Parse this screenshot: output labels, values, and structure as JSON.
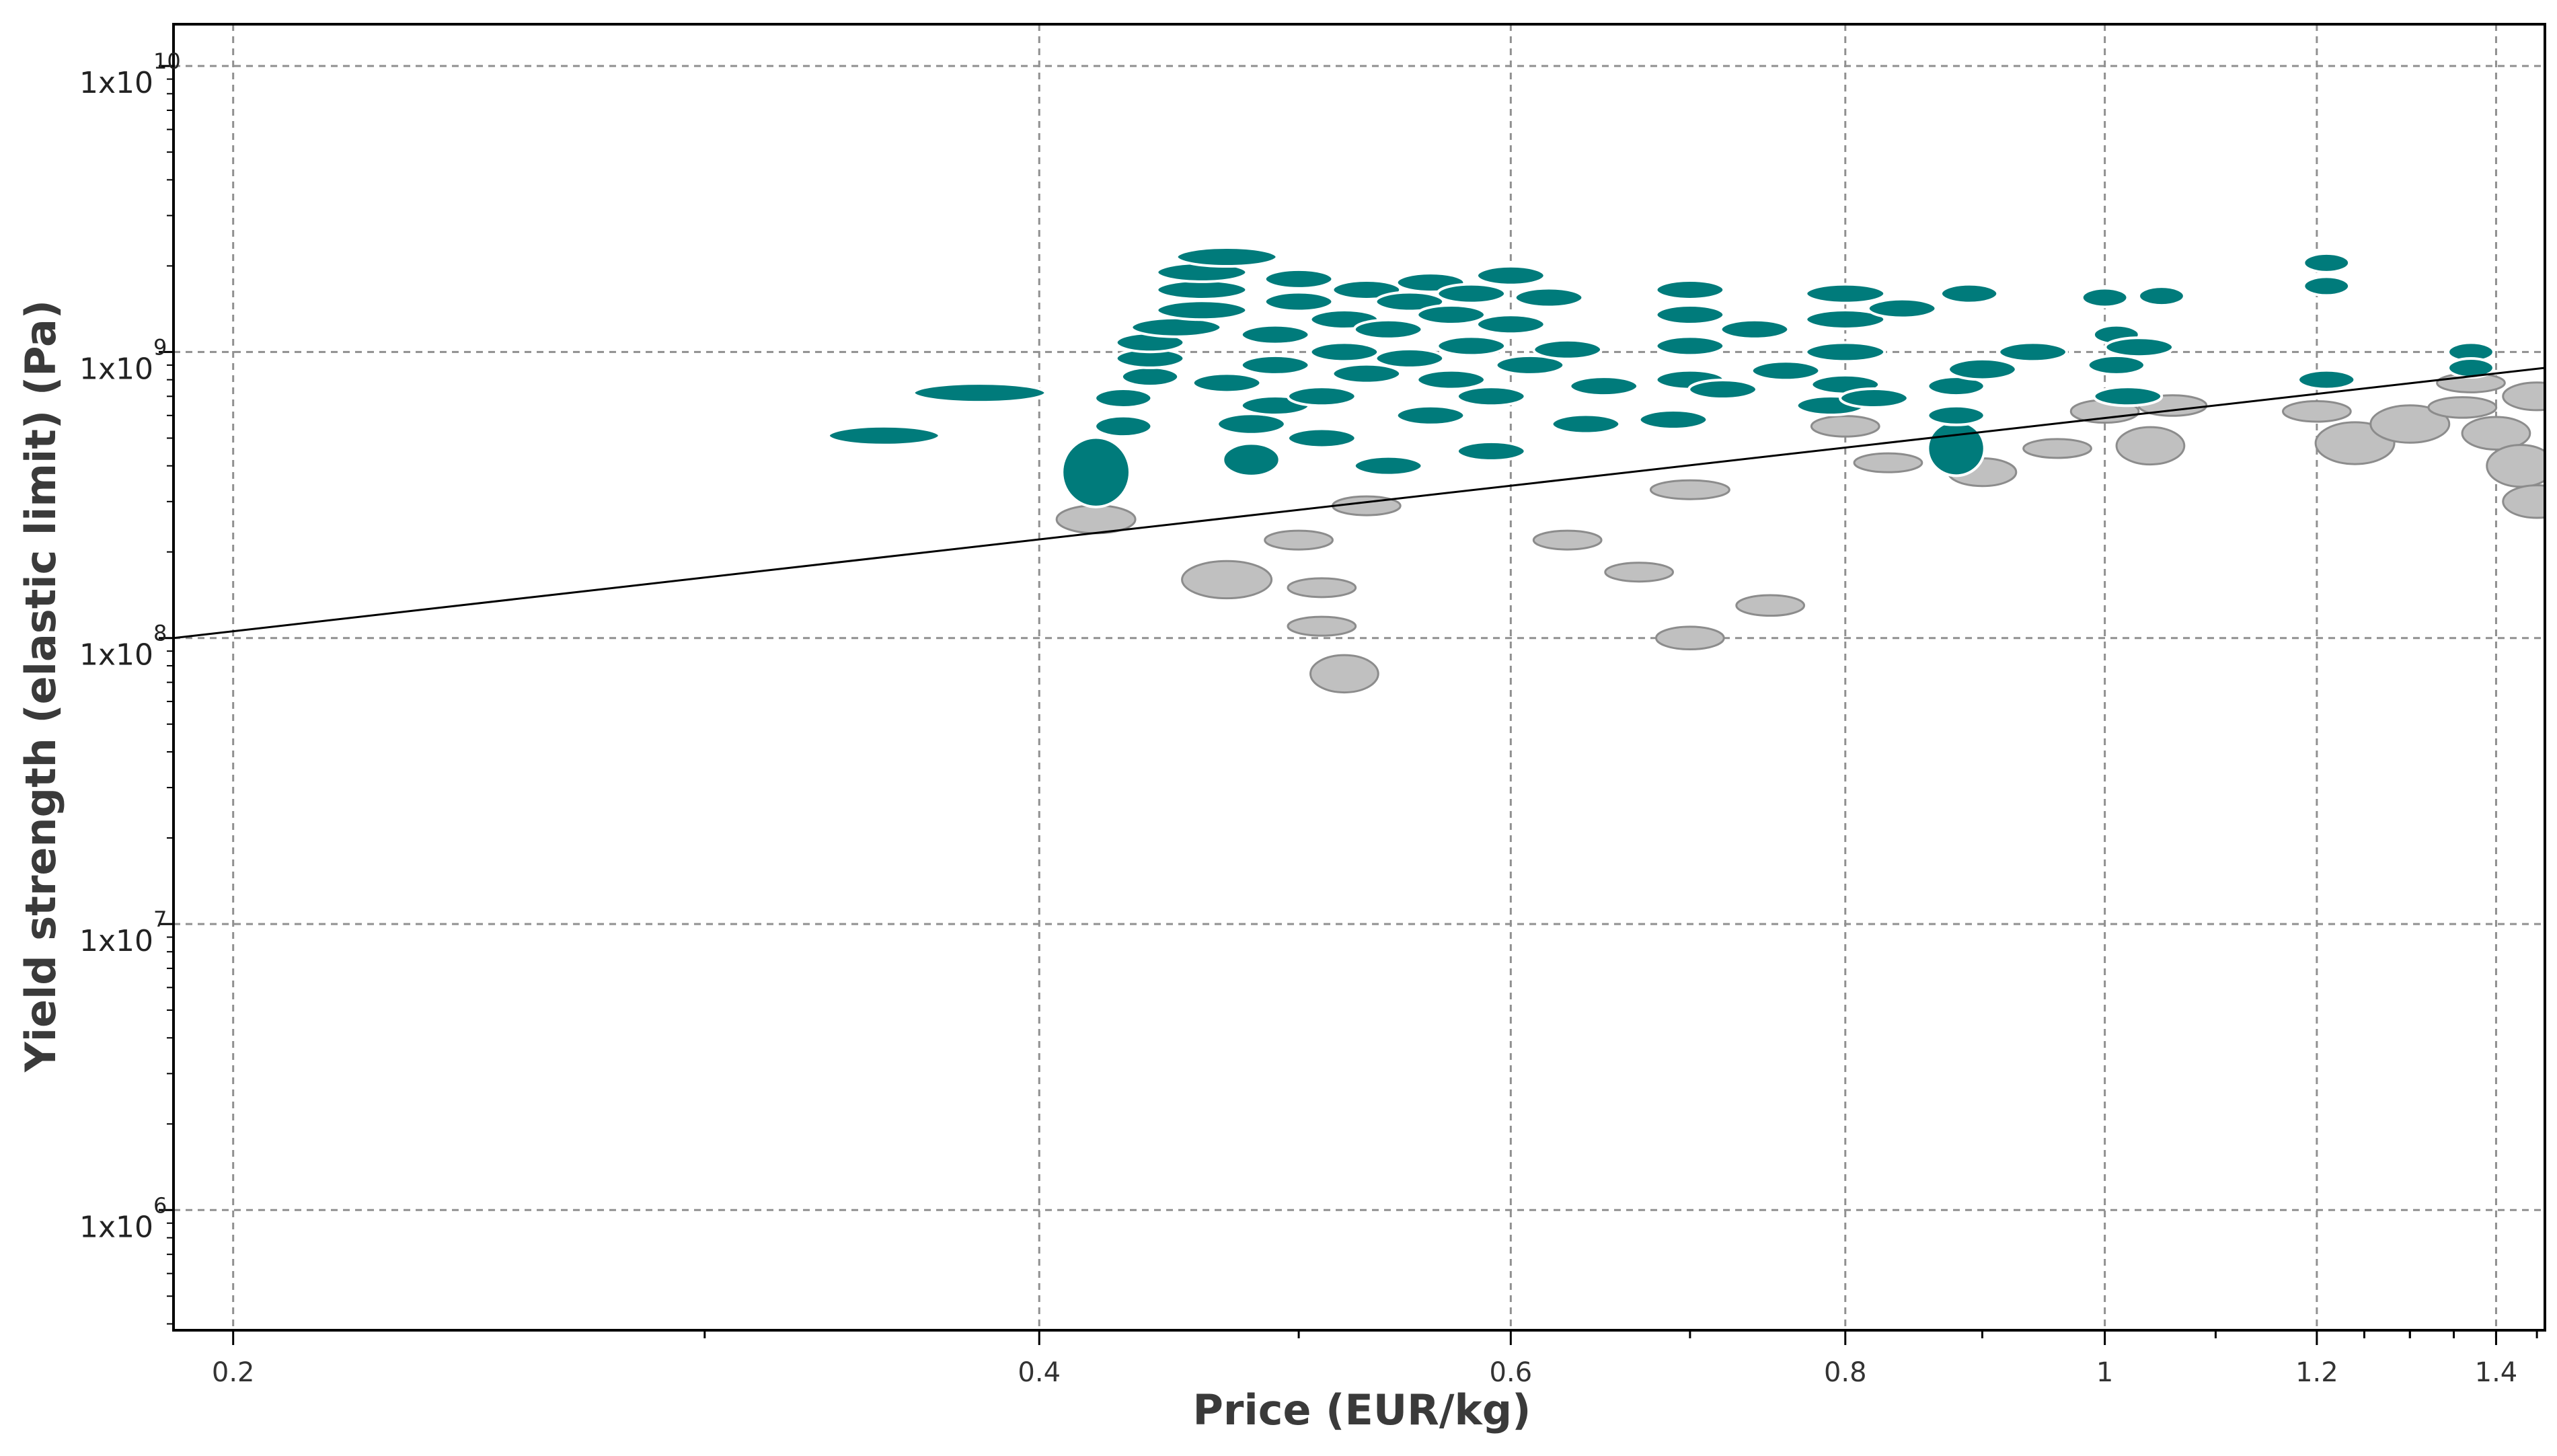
{
  "chart_data": {
    "type": "scatter",
    "title": "",
    "xlabel": "Price (EUR/kg)",
    "ylabel": "Yield strength (elastic limit) (Pa)",
    "xscale": "log",
    "yscale": "log",
    "xlim": [
      0.19,
      1.46
    ],
    "ylim": [
      380000,
      14000000000
    ],
    "grid": true,
    "x_ticks": [
      {
        "value": 0.2,
        "label": "0.2"
      },
      {
        "value": 0.4,
        "label": "0.4"
      },
      {
        "value": 0.6,
        "label": "0.6"
      },
      {
        "value": 0.8,
        "label": "0.8"
      },
      {
        "value": 1.0,
        "label": "1"
      },
      {
        "value": 1.2,
        "label": "1.2"
      },
      {
        "value": 1.4,
        "label": "1.4"
      }
    ],
    "y_ticks": [
      {
        "value": 1000000,
        "base": "1x10",
        "exp": "6"
      },
      {
        "value": 10000000,
        "base": "1x10",
        "exp": "7"
      },
      {
        "value": 100000000,
        "base": "1x10",
        "exp": "8"
      },
      {
        "value": 1000000000,
        "base": "1x10",
        "exp": "9"
      },
      {
        "value": 10000000000,
        "base": "1x10",
        "exp": "10"
      }
    ],
    "guideline": {
      "x1": 0.19,
      "y1": 100000000,
      "x2": 1.46,
      "y2": 880000000
    },
    "colors": {
      "selected": "#007b7b",
      "unselected": "#c0c0c0",
      "grid": "#909090",
      "axis": "#000000"
    },
    "series": [
      {
        "label": "selected",
        "color": "#007b7b",
        "points": [
          [
            0.35,
            510000000,
            1.1,
            1.15
          ],
          [
            0.38,
            720000000,
            1.12,
            1.1
          ],
          [
            0.42,
            380000000,
            1.06,
            1.75
          ],
          [
            0.43,
            550000000,
            1.05,
            1.18
          ],
          [
            0.43,
            690000000,
            1.05,
            1.12
          ],
          [
            0.44,
            820000000,
            1.05,
            1.12
          ],
          [
            0.44,
            950000000,
            1.06,
            1.15
          ],
          [
            0.44,
            1080000000,
            1.06,
            1.12
          ],
          [
            0.45,
            1220000000,
            1.08,
            1.12
          ],
          [
            0.46,
            1400000000,
            1.08,
            1.12
          ],
          [
            0.46,
            1650000000,
            1.08,
            1.1
          ],
          [
            0.46,
            1900000000,
            1.08,
            1.1
          ],
          [
            0.47,
            2150000000,
            1.09,
            1.12
          ],
          [
            0.47,
            780000000,
            1.06,
            1.12
          ],
          [
            0.48,
            560000000,
            1.06,
            1.18
          ],
          [
            0.48,
            420000000,
            1.05,
            1.3
          ],
          [
            0.49,
            650000000,
            1.06,
            1.12
          ],
          [
            0.49,
            900000000,
            1.06,
            1.12
          ],
          [
            0.49,
            1150000000,
            1.06,
            1.12
          ],
          [
            0.5,
            1500000000,
            1.06,
            1.1
          ],
          [
            0.5,
            1800000000,
            1.06,
            1.1
          ],
          [
            0.51,
            700000000,
            1.06,
            1.12
          ],
          [
            0.51,
            500000000,
            1.06,
            1.15
          ],
          [
            0.52,
            1000000000,
            1.06,
            1.12
          ],
          [
            0.52,
            1300000000,
            1.06,
            1.1
          ],
          [
            0.53,
            1650000000,
            1.06,
            1.1
          ],
          [
            0.53,
            840000000,
            1.06,
            1.12
          ],
          [
            0.54,
            400000000,
            1.06,
            1.15
          ],
          [
            0.54,
            1200000000,
            1.06,
            1.1
          ],
          [
            0.55,
            1500000000,
            1.06,
            1.1
          ],
          [
            0.55,
            950000000,
            1.06,
            1.12
          ],
          [
            0.56,
            1750000000,
            1.06,
            1.1
          ],
          [
            0.56,
            600000000,
            1.06,
            1.12
          ],
          [
            0.57,
            1350000000,
            1.06,
            1.1
          ],
          [
            0.57,
            800000000,
            1.06,
            1.12
          ],
          [
            0.58,
            1600000000,
            1.06,
            1.1
          ],
          [
            0.58,
            1050000000,
            1.06,
            1.12
          ],
          [
            0.59,
            450000000,
            1.06,
            1.12
          ],
          [
            0.59,
            700000000,
            1.06,
            1.12
          ],
          [
            0.6,
            1850000000,
            1.06,
            1.1
          ],
          [
            0.6,
            1250000000,
            1.06,
            1.1
          ],
          [
            0.61,
            900000000,
            1.06,
            1.12
          ],
          [
            0.62,
            1550000000,
            1.06,
            1.1
          ],
          [
            0.63,
            1020000000,
            1.06,
            1.12
          ],
          [
            0.64,
            560000000,
            1.06,
            1.12
          ],
          [
            0.65,
            760000000,
            1.06,
            1.12
          ],
          [
            0.69,
            580000000,
            1.06,
            1.15
          ],
          [
            0.7,
            800000000,
            1.06,
            1.12
          ],
          [
            0.7,
            1050000000,
            1.06,
            1.12
          ],
          [
            0.7,
            1350000000,
            1.06,
            1.1
          ],
          [
            0.7,
            1650000000,
            1.06,
            1.1
          ],
          [
            0.72,
            740000000,
            1.06,
            1.15
          ],
          [
            0.74,
            1200000000,
            1.06,
            1.1
          ],
          [
            0.76,
            860000000,
            1.06,
            1.12
          ],
          [
            0.79,
            650000000,
            1.06,
            1.1
          ],
          [
            0.8,
            1000000000,
            1.07,
            1.1
          ],
          [
            0.8,
            1300000000,
            1.07,
            1.1
          ],
          [
            0.8,
            1600000000,
            1.07,
            1.1
          ],
          [
            0.8,
            770000000,
            1.06,
            1.1
          ],
          [
            0.82,
            690000000,
            1.06,
            1.1
          ],
          [
            0.84,
            1420000000,
            1.06,
            1.08
          ],
          [
            0.88,
            460000000,
            1.05,
            1.55
          ],
          [
            0.88,
            600000000,
            1.05,
            1.12
          ],
          [
            0.88,
            760000000,
            1.05,
            1.1
          ],
          [
            0.89,
            1600000000,
            1.05,
            1.08
          ],
          [
            0.9,
            870000000,
            1.06,
            1.18
          ],
          [
            0.94,
            1000000000,
            1.06,
            1.08
          ],
          [
            1.0,
            1550000000,
            1.04,
            1.08
          ],
          [
            1.01,
            1150000000,
            1.04,
            1.08
          ],
          [
            1.01,
            900000000,
            1.05,
            1.1
          ],
          [
            1.02,
            700000000,
            1.06,
            1.1
          ],
          [
            1.03,
            1040000000,
            1.06,
            1.08
          ],
          [
            1.05,
            1570000000,
            1.04,
            1.1
          ],
          [
            1.21,
            2050000000,
            1.04,
            1.1
          ],
          [
            1.21,
            1700000000,
            1.04,
            1.08
          ],
          [
            1.21,
            800000000,
            1.05,
            1.08
          ],
          [
            1.37,
            1000000000,
            1.04,
            1.1
          ],
          [
            1.37,
            880000000,
            1.04,
            1.1
          ]
        ]
      },
      {
        "label": "unselected",
        "color": "#c0c0c0",
        "points": [
          [
            0.42,
            260000000,
            1.07,
            1.25
          ],
          [
            0.47,
            160000000,
            1.08,
            1.35
          ],
          [
            0.5,
            220000000,
            1.06,
            1.15
          ],
          [
            0.51,
            150000000,
            1.06,
            1.12
          ],
          [
            0.51,
            110000000,
            1.06,
            1.14
          ],
          [
            0.52,
            75000000,
            1.06,
            1.35
          ],
          [
            0.53,
            290000000,
            1.06,
            1.15
          ],
          [
            0.63,
            220000000,
            1.06,
            1.14
          ],
          [
            0.67,
            170000000,
            1.06,
            1.15
          ],
          [
            0.7,
            330000000,
            1.07,
            1.14
          ],
          [
            0.7,
            100000000,
            1.06,
            1.2
          ],
          [
            0.75,
            130000000,
            1.06,
            1.18
          ],
          [
            0.8,
            550000000,
            1.06,
            1.18
          ],
          [
            0.83,
            410000000,
            1.06,
            1.12
          ],
          [
            0.9,
            380000000,
            1.06,
            1.25
          ],
          [
            0.96,
            460000000,
            1.06,
            1.1
          ],
          [
            1.0,
            620000000,
            1.06,
            1.2
          ],
          [
            1.04,
            470000000,
            1.06,
            1.35
          ],
          [
            1.06,
            650000000,
            1.06,
            1.18
          ],
          [
            1.2,
            620000000,
            1.06,
            1.18
          ],
          [
            1.24,
            480000000,
            1.07,
            1.4
          ],
          [
            1.3,
            560000000,
            1.07,
            1.35
          ],
          [
            1.36,
            640000000,
            1.06,
            1.18
          ],
          [
            1.37,
            780000000,
            1.06,
            1.12
          ],
          [
            1.4,
            520000000,
            1.06,
            1.3
          ],
          [
            1.43,
            400000000,
            1.06,
            1.4
          ],
          [
            1.45,
            700000000,
            1.06,
            1.25
          ],
          [
            1.45,
            300000000,
            1.06,
            1.3
          ]
        ]
      }
    ]
  }
}
